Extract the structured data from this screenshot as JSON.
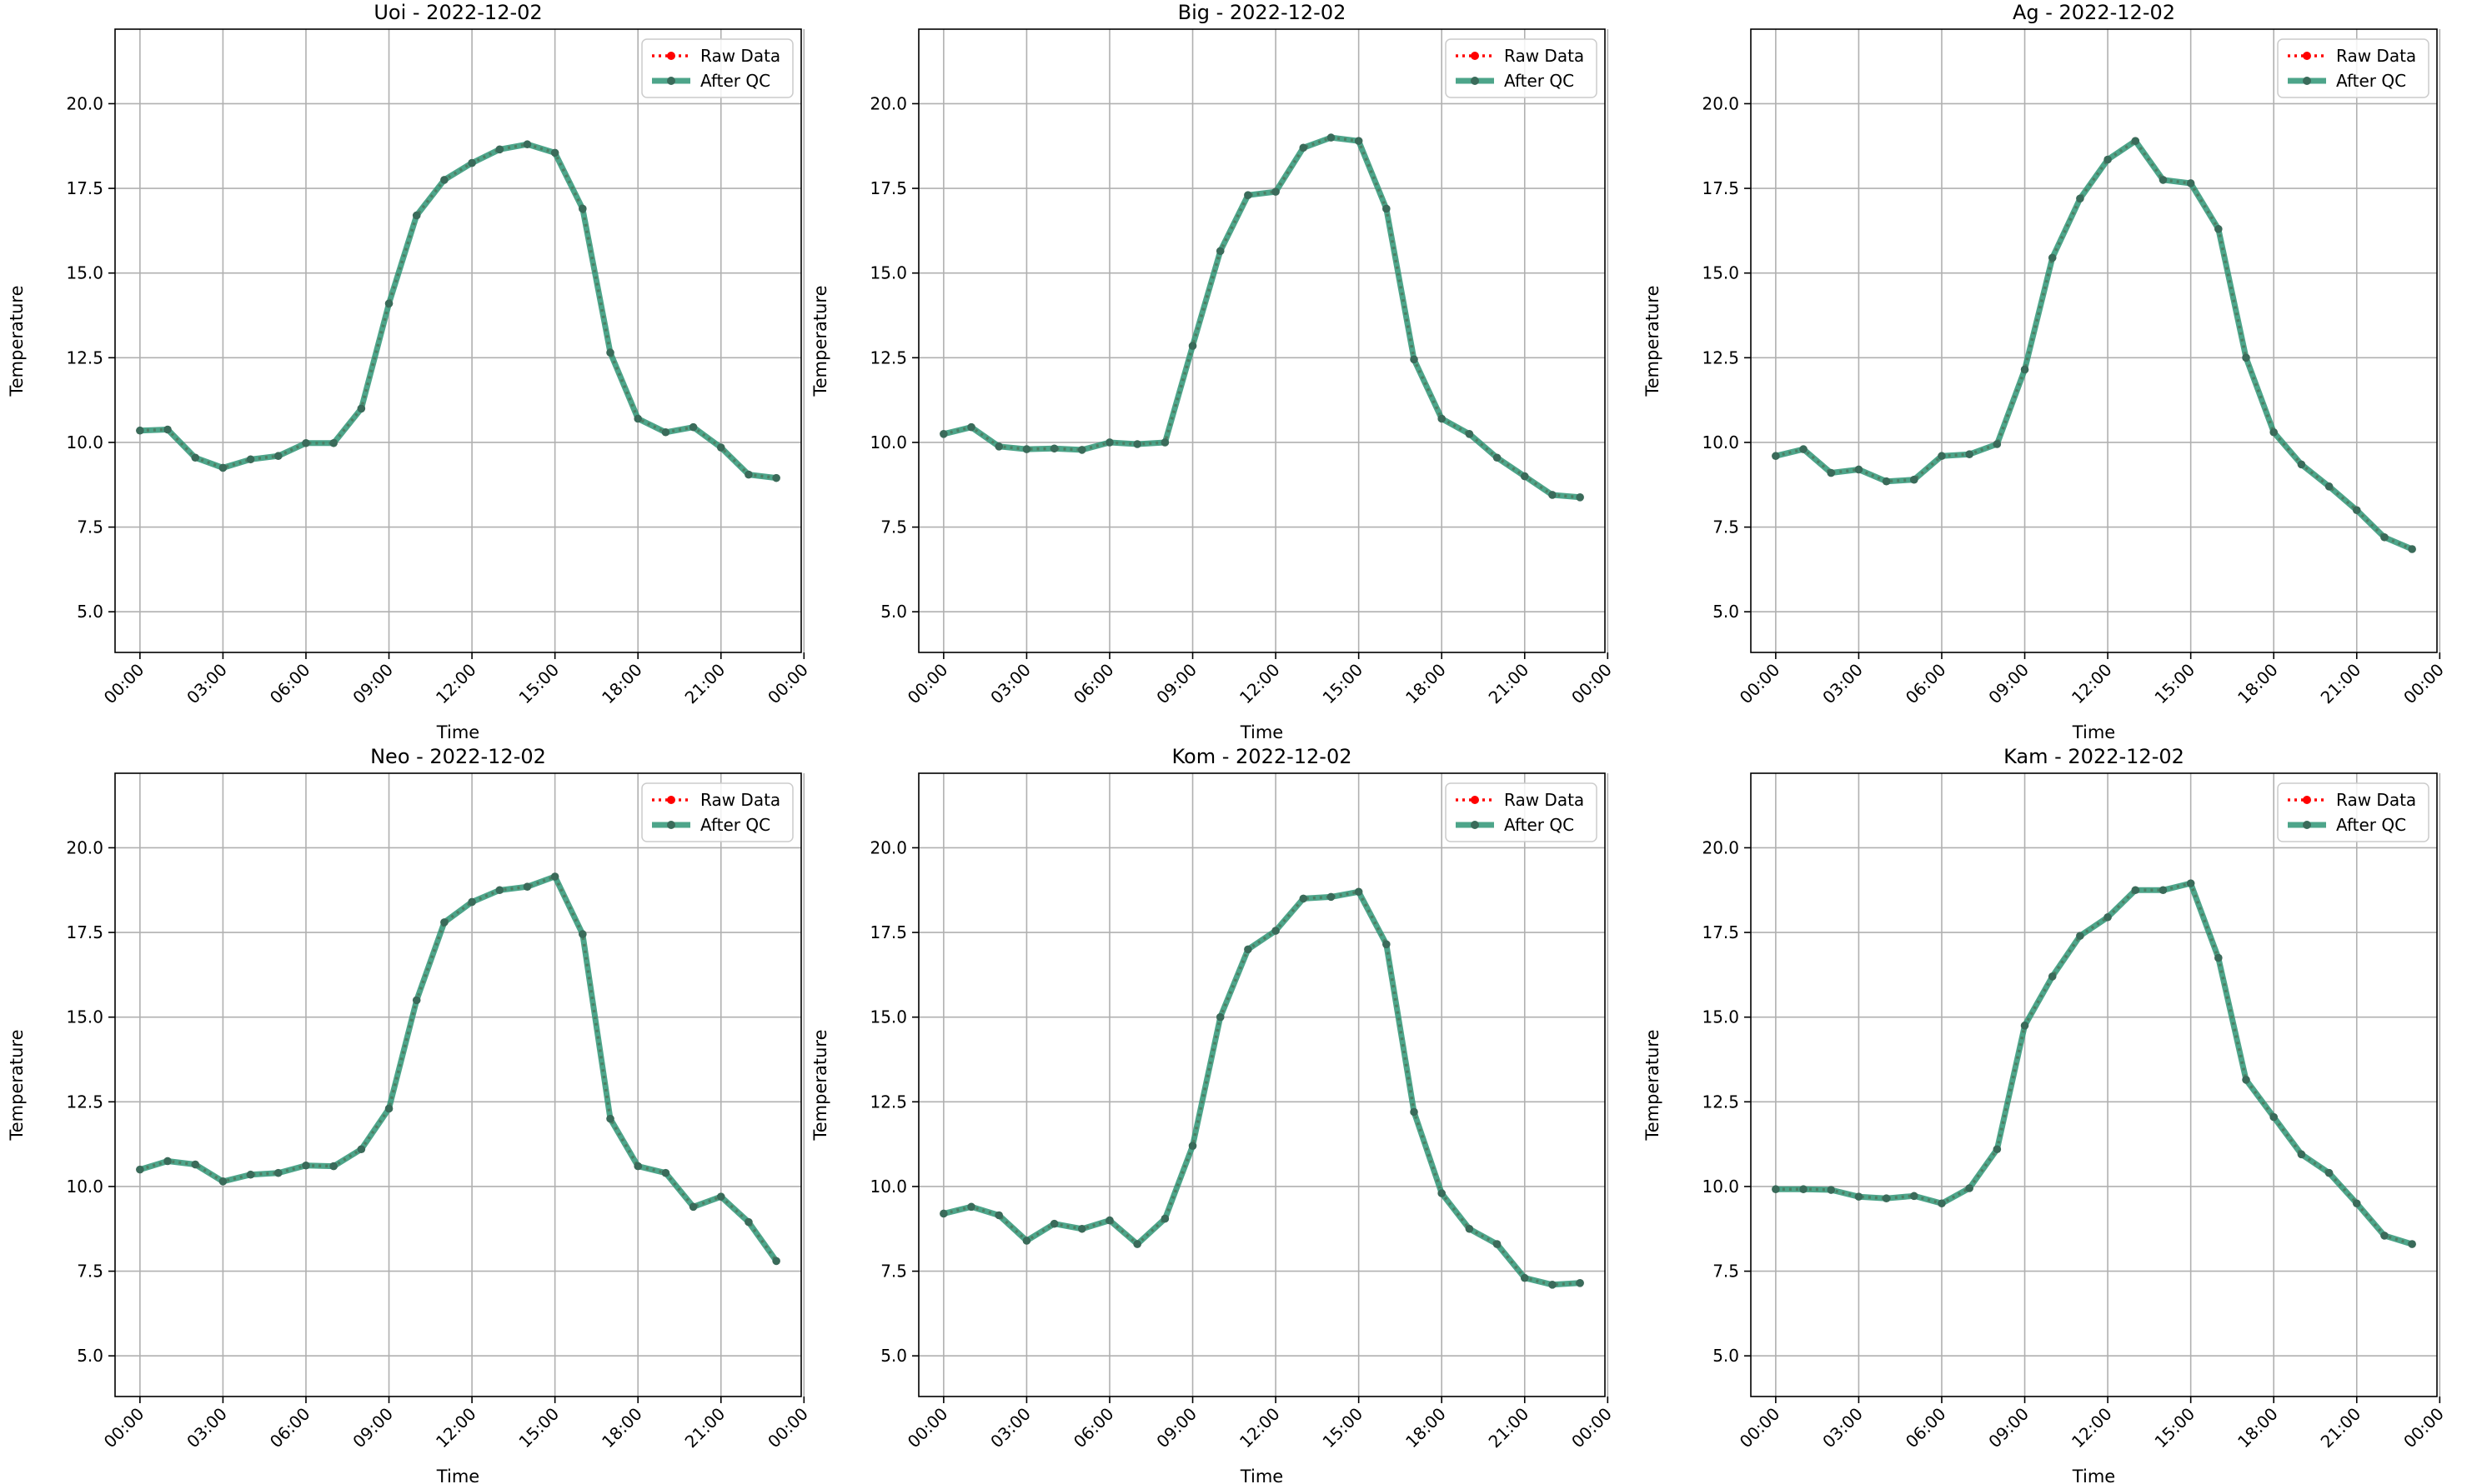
{
  "figure": {
    "legend_labels": {
      "raw": "Raw Data",
      "qc": "After QC"
    },
    "colors": {
      "raw": "#ff0000",
      "qc": "#2e9575",
      "qc_marker": "#3a6b5a",
      "grid": "#b0b0b0"
    }
  },
  "chart_data": [
    {
      "type": "line",
      "title": "Uoi - 2022-12-02",
      "xlabel": "Time",
      "ylabel": "Temperature",
      "xlim": [
        -0.9,
        23.9
      ],
      "ylim": [
        3.8,
        22.2
      ],
      "xticks": [
        0,
        3,
        6,
        9,
        12,
        15,
        18,
        21,
        24
      ],
      "xtick_labels": [
        "00:00",
        "03:00",
        "06:00",
        "09:00",
        "12:00",
        "15:00",
        "18:00",
        "21:00",
        "00:00"
      ],
      "yticks": [
        5.0,
        7.5,
        10.0,
        12.5,
        15.0,
        17.5,
        20.0
      ],
      "ytick_labels": [
        "5.0",
        "7.5",
        "10.0",
        "12.5",
        "15.0",
        "17.5",
        "20.0"
      ],
      "grid": true,
      "legend_position": "top-right",
      "x": [
        0,
        1,
        2,
        3,
        4,
        5,
        6,
        7,
        8,
        9,
        10,
        11,
        12,
        13,
        14,
        15,
        16,
        17,
        18,
        19,
        20,
        21,
        22,
        23
      ],
      "series": [
        {
          "name": "Raw Data",
          "values": [
            10.35,
            10.38,
            9.55,
            9.25,
            9.5,
            9.6,
            9.98,
            9.98,
            11.0,
            14.1,
            16.7,
            17.75,
            18.25,
            18.65,
            18.8,
            18.55,
            16.9,
            12.65,
            10.7,
            10.3,
            10.45,
            9.85,
            9.05,
            8.95
          ]
        },
        {
          "name": "After QC",
          "values": [
            10.35,
            10.38,
            9.55,
            9.25,
            9.5,
            9.6,
            9.98,
            9.98,
            11.0,
            14.1,
            16.7,
            17.75,
            18.25,
            18.65,
            18.8,
            18.55,
            16.9,
            12.65,
            10.7,
            10.3,
            10.45,
            9.85,
            9.05,
            8.95
          ]
        }
      ]
    },
    {
      "type": "line",
      "title": "Big - 2022-12-02",
      "xlabel": "Time",
      "ylabel": "Temperature",
      "xlim": [
        -0.9,
        23.9
      ],
      "ylim": [
        3.8,
        22.2
      ],
      "xticks": [
        0,
        3,
        6,
        9,
        12,
        15,
        18,
        21,
        24
      ],
      "xtick_labels": [
        "00:00",
        "03:00",
        "06:00",
        "09:00",
        "12:00",
        "15:00",
        "18:00",
        "21:00",
        "00:00"
      ],
      "yticks": [
        5.0,
        7.5,
        10.0,
        12.5,
        15.0,
        17.5,
        20.0
      ],
      "ytick_labels": [
        "5.0",
        "7.5",
        "10.0",
        "12.5",
        "15.0",
        "17.5",
        "20.0"
      ],
      "grid": true,
      "legend_position": "top-right",
      "x": [
        0,
        1,
        2,
        3,
        4,
        5,
        6,
        7,
        8,
        9,
        10,
        11,
        12,
        13,
        14,
        15,
        16,
        17,
        18,
        19,
        20,
        21,
        22,
        23
      ],
      "series": [
        {
          "name": "Raw Data",
          "values": [
            10.25,
            10.45,
            9.88,
            9.8,
            9.82,
            9.78,
            10.0,
            9.95,
            10.0,
            12.85,
            15.65,
            17.3,
            17.4,
            18.7,
            19.0,
            18.9,
            16.9,
            12.45,
            10.7,
            10.25,
            9.55,
            9.0,
            8.45,
            8.38
          ]
        },
        {
          "name": "After QC",
          "values": [
            10.25,
            10.45,
            9.88,
            9.8,
            9.82,
            9.78,
            10.0,
            9.95,
            10.0,
            12.85,
            15.65,
            17.3,
            17.4,
            18.7,
            19.0,
            18.9,
            16.9,
            12.45,
            10.7,
            10.25,
            9.55,
            9.0,
            8.45,
            8.38
          ]
        }
      ]
    },
    {
      "type": "line",
      "title": "Ag - 2022-12-02",
      "xlabel": "Time",
      "ylabel": "Temperature",
      "xlim": [
        -0.9,
        23.9
      ],
      "ylim": [
        3.8,
        22.2
      ],
      "xticks": [
        0,
        3,
        6,
        9,
        12,
        15,
        18,
        21,
        24
      ],
      "xtick_labels": [
        "00:00",
        "03:00",
        "06:00",
        "09:00",
        "12:00",
        "15:00",
        "18:00",
        "21:00",
        "00:00"
      ],
      "yticks": [
        5.0,
        7.5,
        10.0,
        12.5,
        15.0,
        17.5,
        20.0
      ],
      "ytick_labels": [
        "5.0",
        "7.5",
        "10.0",
        "12.5",
        "15.0",
        "17.5",
        "20.0"
      ],
      "grid": true,
      "legend_position": "top-right",
      "x": [
        0,
        1,
        2,
        3,
        4,
        5,
        6,
        7,
        8,
        9,
        10,
        11,
        12,
        13,
        14,
        15,
        16,
        17,
        18,
        19,
        20,
        21,
        22,
        23
      ],
      "series": [
        {
          "name": "Raw Data",
          "values": [
            9.6,
            9.8,
            9.1,
            9.2,
            8.85,
            8.9,
            9.6,
            9.65,
            9.95,
            12.15,
            15.45,
            17.2,
            18.35,
            18.9,
            17.75,
            17.65,
            16.3,
            12.5,
            10.3,
            9.35,
            8.7,
            8.0,
            7.2,
            6.85
          ]
        },
        {
          "name": "After QC",
          "values": [
            9.6,
            9.8,
            9.1,
            9.2,
            8.85,
            8.9,
            9.6,
            9.65,
            9.95,
            12.15,
            15.45,
            17.2,
            18.35,
            18.9,
            17.75,
            17.65,
            16.3,
            12.5,
            10.3,
            9.35,
            8.7,
            8.0,
            7.2,
            6.85
          ]
        }
      ]
    },
    {
      "type": "line",
      "title": "Neo - 2022-12-02",
      "xlabel": "Time",
      "ylabel": "Temperature",
      "xlim": [
        -0.9,
        23.9
      ],
      "ylim": [
        3.8,
        22.2
      ],
      "xticks": [
        0,
        3,
        6,
        9,
        12,
        15,
        18,
        21,
        24
      ],
      "xtick_labels": [
        "00:00",
        "03:00",
        "06:00",
        "09:00",
        "12:00",
        "15:00",
        "18:00",
        "21:00",
        "00:00"
      ],
      "yticks": [
        5.0,
        7.5,
        10.0,
        12.5,
        15.0,
        17.5,
        20.0
      ],
      "ytick_labels": [
        "5.0",
        "7.5",
        "10.0",
        "12.5",
        "15.0",
        "17.5",
        "20.0"
      ],
      "grid": true,
      "legend_position": "top-right",
      "x": [
        0,
        1,
        2,
        3,
        4,
        5,
        6,
        7,
        8,
        9,
        10,
        11,
        12,
        13,
        14,
        15,
        16,
        17,
        18,
        19,
        20,
        21,
        22,
        23
      ],
      "series": [
        {
          "name": "Raw Data",
          "values": [
            10.5,
            10.75,
            10.65,
            10.15,
            10.35,
            10.4,
            10.62,
            10.6,
            11.1,
            12.3,
            15.5,
            17.8,
            18.4,
            18.75,
            18.85,
            19.15,
            17.45,
            12.0,
            10.6,
            10.4,
            9.4,
            9.7,
            8.95,
            7.8
          ]
        },
        {
          "name": "After QC",
          "values": [
            10.5,
            10.75,
            10.65,
            10.15,
            10.35,
            10.4,
            10.62,
            10.6,
            11.1,
            12.3,
            15.5,
            17.8,
            18.4,
            18.75,
            18.85,
            19.15,
            17.45,
            12.0,
            10.6,
            10.4,
            9.4,
            9.7,
            8.95,
            7.8
          ]
        }
      ]
    },
    {
      "type": "line",
      "title": "Kom - 2022-12-02",
      "xlabel": "Time",
      "ylabel": "Temperature",
      "xlim": [
        -0.9,
        23.9
      ],
      "ylim": [
        3.8,
        22.2
      ],
      "xticks": [
        0,
        3,
        6,
        9,
        12,
        15,
        18,
        21,
        24
      ],
      "xtick_labels": [
        "00:00",
        "03:00",
        "06:00",
        "09:00",
        "12:00",
        "15:00",
        "18:00",
        "21:00",
        "00:00"
      ],
      "yticks": [
        5.0,
        7.5,
        10.0,
        12.5,
        15.0,
        17.5,
        20.0
      ],
      "ytick_labels": [
        "5.0",
        "7.5",
        "10.0",
        "12.5",
        "15.0",
        "17.5",
        "20.0"
      ],
      "grid": true,
      "legend_position": "top-right",
      "x": [
        0,
        1,
        2,
        3,
        4,
        5,
        6,
        7,
        8,
        9,
        10,
        11,
        12,
        13,
        14,
        15,
        16,
        17,
        18,
        19,
        20,
        21,
        22,
        23
      ],
      "series": [
        {
          "name": "Raw Data",
          "values": [
            9.2,
            9.4,
            9.15,
            8.4,
            8.9,
            8.75,
            9.0,
            8.3,
            9.05,
            11.2,
            15.0,
            17.0,
            17.55,
            18.5,
            18.55,
            18.7,
            17.15,
            12.2,
            9.8,
            8.75,
            8.3,
            7.3,
            7.1,
            7.15
          ]
        },
        {
          "name": "After QC",
          "values": [
            9.2,
            9.4,
            9.15,
            8.4,
            8.9,
            8.75,
            9.0,
            8.3,
            9.05,
            11.2,
            15.0,
            17.0,
            17.55,
            18.5,
            18.55,
            18.7,
            17.15,
            12.2,
            9.8,
            8.75,
            8.3,
            7.3,
            7.1,
            7.15
          ]
        }
      ]
    },
    {
      "type": "line",
      "title": "Kam - 2022-12-02",
      "xlabel": "Time",
      "ylabel": "Temperature",
      "xlim": [
        -0.9,
        23.9
      ],
      "ylim": [
        3.8,
        22.2
      ],
      "xticks": [
        0,
        3,
        6,
        9,
        12,
        15,
        18,
        21,
        24
      ],
      "xtick_labels": [
        "00:00",
        "03:00",
        "06:00",
        "09:00",
        "12:00",
        "15:00",
        "18:00",
        "21:00",
        "00:00"
      ],
      "yticks": [
        5.0,
        7.5,
        10.0,
        12.5,
        15.0,
        17.5,
        20.0
      ],
      "ytick_labels": [
        "5.0",
        "7.5",
        "10.0",
        "12.5",
        "15.0",
        "17.5",
        "20.0"
      ],
      "grid": true,
      "legend_position": "top-right",
      "x": [
        0,
        1,
        2,
        3,
        4,
        5,
        6,
        7,
        8,
        9,
        10,
        11,
        12,
        13,
        14,
        15,
        16,
        17,
        18,
        19,
        20,
        21,
        22,
        23
      ],
      "series": [
        {
          "name": "Raw Data",
          "values": [
            9.92,
            9.92,
            9.9,
            9.7,
            9.65,
            9.72,
            9.5,
            9.95,
            11.1,
            14.75,
            16.2,
            17.4,
            17.95,
            18.75,
            18.75,
            18.95,
            16.75,
            13.15,
            12.05,
            10.95,
            10.4,
            9.5,
            8.55,
            8.3
          ]
        },
        {
          "name": "After QC",
          "values": [
            9.92,
            9.92,
            9.9,
            9.7,
            9.65,
            9.72,
            9.5,
            9.95,
            11.1,
            14.75,
            16.2,
            17.4,
            17.95,
            18.75,
            18.75,
            18.95,
            16.75,
            13.15,
            12.05,
            10.95,
            10.4,
            9.5,
            8.55,
            8.3
          ]
        }
      ]
    }
  ]
}
